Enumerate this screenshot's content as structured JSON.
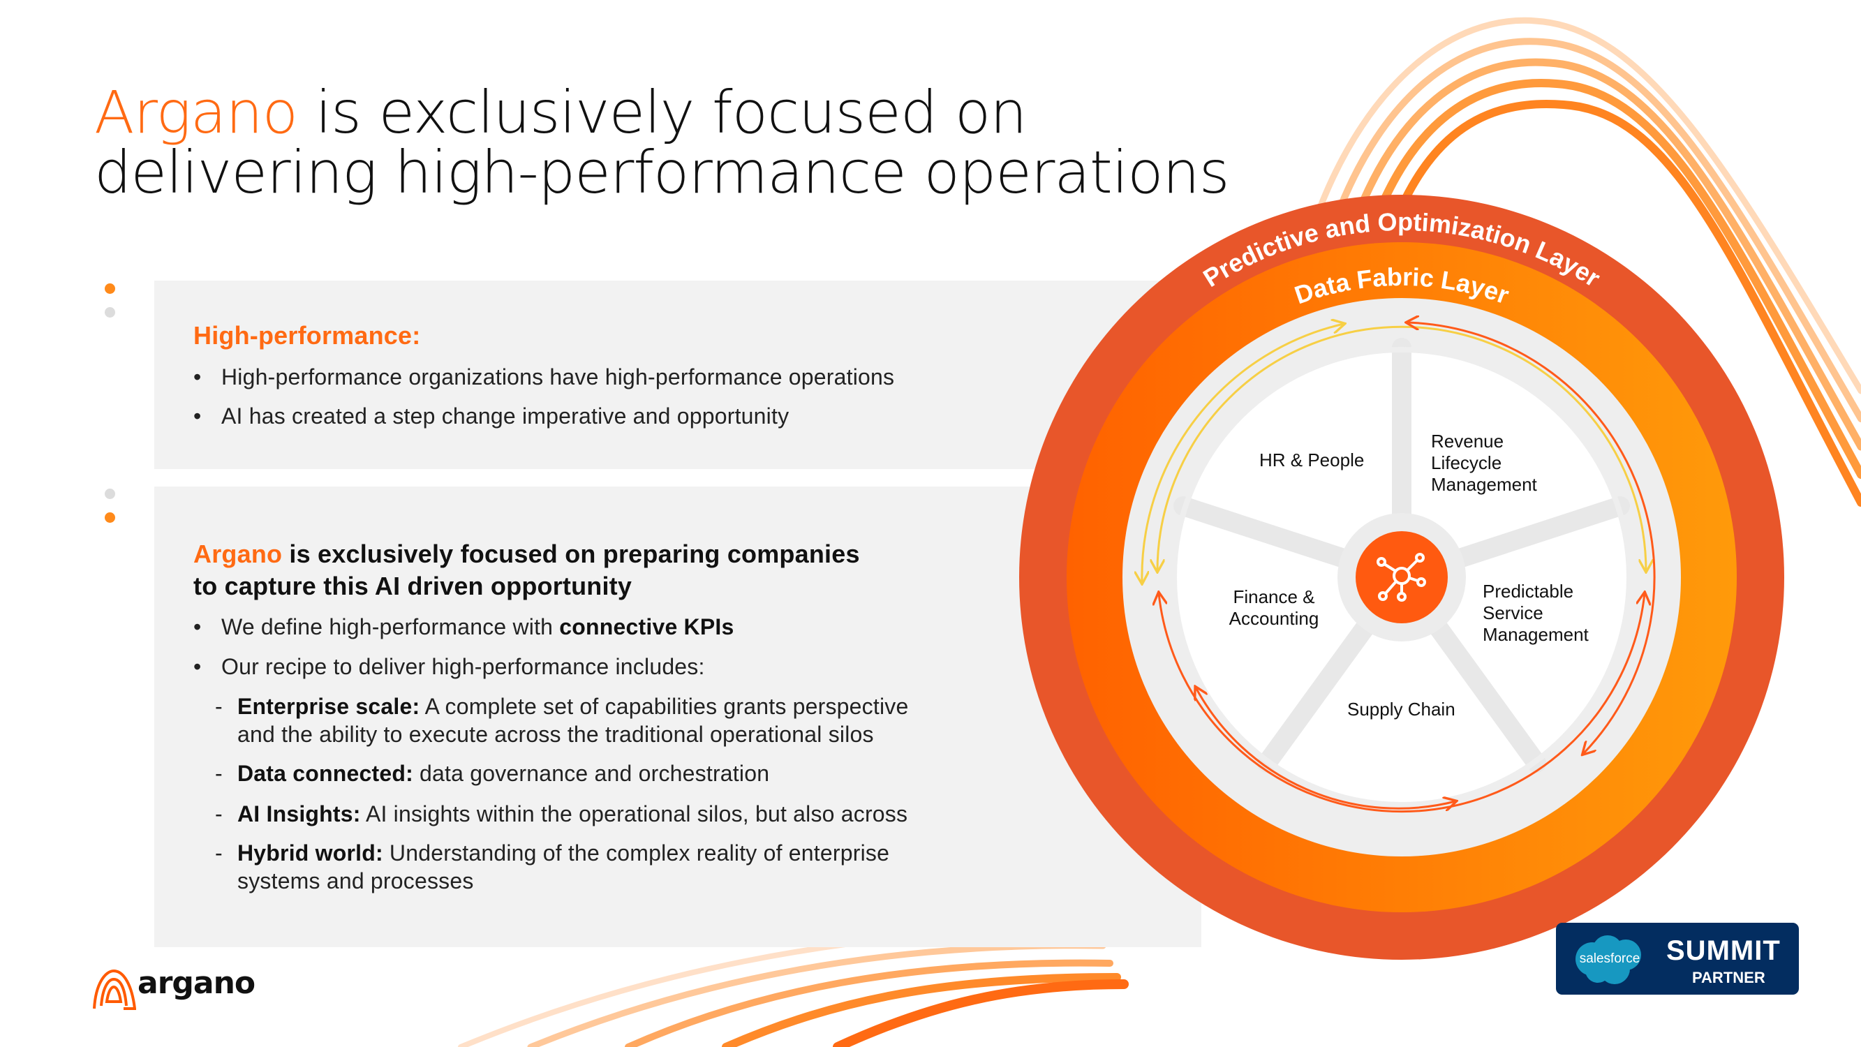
{
  "title": {
    "accent": "Argano",
    "line1_rest": " is exclusively focused on",
    "line2": "delivering high-performance operations"
  },
  "panel1": {
    "heading": "High-performance:",
    "bullets": [
      "High-performance organizations have high-performance operations",
      "AI has created a step change imperative and opportunity"
    ]
  },
  "panel2": {
    "heading_accent": "Argano",
    "heading_line1_rest": " is exclusively focused on preparing companies",
    "heading_line2": "to capture this AI driven opportunity",
    "bullet1_prefix": "We define high-performance with ",
    "bullet1_bold": "connective KPIs",
    "bullet2": "Our recipe to deliver high-performance includes:",
    "items": [
      {
        "bold": "Enterprise scale:",
        "text": " A complete set of capabilities grants perspective",
        "cont": "and the ability to execute across the traditional operational silos"
      },
      {
        "bold": "Data connected:",
        "text": " data governance and orchestration"
      },
      {
        "bold": "AI Insights:",
        "text": " AI insights within the operational silos, but also across"
      },
      {
        "bold": "Hybrid world:",
        "text": " Understanding of the complex reality of enterprise",
        "cont": "systems and processes"
      }
    ]
  },
  "wheel": {
    "outer_label": "Predictive and Optimization Layer",
    "inner_label": "Data Fabric Layer",
    "center_icon": "network-hub-icon",
    "segments": {
      "hr": "HR & People",
      "revenue": [
        "Revenue",
        "Lifecycle",
        "Management"
      ],
      "finance": [
        "Finance &",
        "Accounting"
      ],
      "service": [
        "Predictable",
        "Service",
        "Management"
      ],
      "supply": "Supply Chain"
    },
    "colors": {
      "outer": "#E8562A",
      "inner_start": "#FF6200",
      "inner_end": "#FF9A0A",
      "yellow": "#F7CF45",
      "orange": "#FF5A1A"
    }
  },
  "badge": {
    "brand": "salesforce",
    "tier": "SUMMIT",
    "sub": "PARTNER"
  },
  "logo": {
    "text": "argano"
  }
}
